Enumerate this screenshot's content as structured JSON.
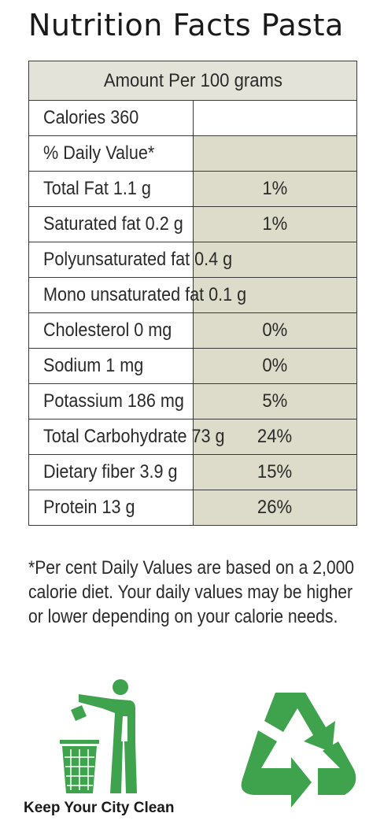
{
  "header": {
    "title": "Nutrition Facts Pasta"
  },
  "table": {
    "amount_per": "Amount Per 100 grams",
    "calories": "Calories 360",
    "daily_value_heading": "% Daily Value*",
    "rows": [
      {
        "label": "Total Fat 1.1 g",
        "percent": "1%"
      },
      {
        "label": "Saturated fat 0.2 g",
        "percent": "1%"
      },
      {
        "label": "Polyunsaturated fat 0.4 g",
        "percent": ""
      },
      {
        "label": "Mono unsaturated fat 0.1 g",
        "percent": ""
      },
      {
        "label": "Cholesterol 0 mg",
        "percent": "0%"
      },
      {
        "label": "Sodium 1 mg",
        "percent": "0%"
      },
      {
        "label": "Potassium 186 mg",
        "percent": "5%"
      },
      {
        "label": "Total Carbohydrate 73 g",
        "percent": "24%"
      },
      {
        "label": "Dietary fiber 3.9 g",
        "percent": "15%"
      },
      {
        "label": "Protein 13 g",
        "percent": "26%"
      }
    ]
  },
  "footnote": "*Per cent Daily Values are based on a 2,000 calorie diet. Your daily values may be higher or lower depending on your calorie needs.",
  "footer": {
    "slogan": "Keep Your City Clean",
    "icons": [
      "tidyman-litter-icon",
      "recycle-icon"
    ],
    "icon_color": "#3fa34d"
  }
}
